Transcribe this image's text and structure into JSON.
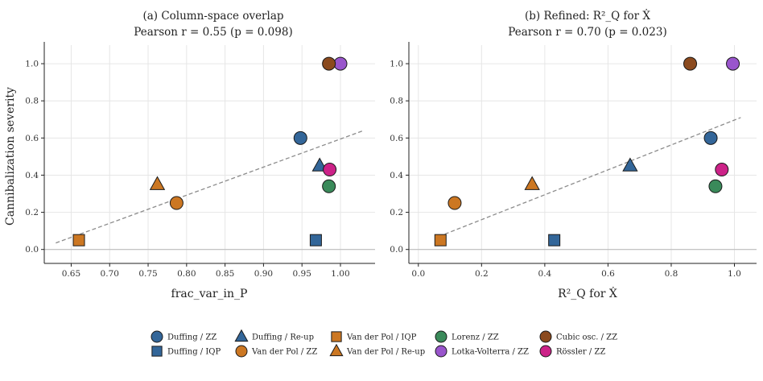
{
  "chart_data": [
    {
      "type": "scatter",
      "title_line1": "(a) Column-space overlap",
      "title_line2": "Pearson r = 0.55 (p = 0.098)",
      "xlabel": "frac_var_in_P",
      "ylabel": "Cannibalization severity",
      "xlim": [
        0.615,
        1.045
      ],
      "ylim": [
        -0.075,
        1.1
      ],
      "xticks": [
        0.65,
        0.7,
        0.75,
        0.8,
        0.85,
        0.9,
        0.95,
        1.0
      ],
      "xtick_labels": [
        "0.65",
        "0.70",
        "0.75",
        "0.80",
        "0.85",
        "0.90",
        "0.95",
        "1.00"
      ],
      "yticks": [
        0.0,
        0.2,
        0.4,
        0.6,
        0.8,
        1.0
      ],
      "ytick_labels": [
        "0.0",
        "0.2",
        "0.4",
        "0.6",
        "0.8",
        "1.0"
      ],
      "grid": true,
      "fit_line": {
        "x": [
          0.63,
          1.03
        ],
        "y": [
          0.035,
          0.64
        ]
      },
      "points": [
        {
          "series": "Duffing / ZZ",
          "x": 0.948,
          "y": 0.6
        },
        {
          "series": "Duffing / IQP",
          "x": 0.968,
          "y": 0.05
        },
        {
          "series": "Duffing / Re-up",
          "x": 0.973,
          "y": 0.45
        },
        {
          "series": "Van der Pol / IQP",
          "x": 0.66,
          "y": 0.05
        },
        {
          "series": "Van der Pol / ZZ",
          "x": 0.787,
          "y": 0.25
        },
        {
          "series": "Van der Pol / Re-up",
          "x": 0.762,
          "y": 0.35
        },
        {
          "series": "Lorenz / ZZ",
          "x": 0.985,
          "y": 0.34
        },
        {
          "series": "Lotka-Volterra / ZZ",
          "x": 1.0,
          "y": 1.0
        },
        {
          "series": "Cubic osc. / ZZ",
          "x": 0.985,
          "y": 1.0
        },
        {
          "series": "Rössler / ZZ",
          "x": 0.986,
          "y": 0.43
        }
      ]
    },
    {
      "type": "scatter",
      "title_line1": "(b) Refined: R²_Q for Ẋ",
      "title_line2": "Pearson r = 0.70 (p = 0.023)",
      "xlabel": "R²_Q for Ẋ",
      "ylabel": "",
      "xlim": [
        -0.03,
        1.07
      ],
      "ylim": [
        -0.075,
        1.1
      ],
      "xticks": [
        0.0,
        0.2,
        0.4,
        0.6,
        0.8,
        1.0
      ],
      "xtick_labels": [
        "0.0",
        "0.2",
        "0.4",
        "0.6",
        "0.8",
        "1.0"
      ],
      "yticks": [
        0.0,
        0.2,
        0.4,
        0.6,
        0.8,
        1.0
      ],
      "ytick_labels": [
        "0.0",
        "0.2",
        "0.4",
        "0.6",
        "0.8",
        "1.0"
      ],
      "grid": true,
      "fit_line": {
        "x": [
          0.065,
          1.02
        ],
        "y": [
          0.07,
          0.71
        ]
      },
      "points": [
        {
          "series": "Duffing / ZZ",
          "x": 0.925,
          "y": 0.6
        },
        {
          "series": "Duffing / IQP",
          "x": 0.43,
          "y": 0.05
        },
        {
          "series": "Duffing / Re-up",
          "x": 0.67,
          "y": 0.45
        },
        {
          "series": "Van der Pol / IQP",
          "x": 0.07,
          "y": 0.05
        },
        {
          "series": "Van der Pol / ZZ",
          "x": 0.115,
          "y": 0.25
        },
        {
          "series": "Van der Pol / Re-up",
          "x": 0.36,
          "y": 0.35
        },
        {
          "series": "Lorenz / ZZ",
          "x": 0.94,
          "y": 0.34
        },
        {
          "series": "Lotka-Volterra / ZZ",
          "x": 0.995,
          "y": 1.0
        },
        {
          "series": "Cubic osc. / ZZ",
          "x": 0.86,
          "y": 1.0
        },
        {
          "series": "Rössler / ZZ",
          "x": 0.96,
          "y": 0.43
        }
      ]
    }
  ],
  "legend": {
    "placement": "bottom-center",
    "entries": [
      {
        "name": "Duffing / ZZ",
        "marker": "circle",
        "color": "#336699"
      },
      {
        "name": "Duffing / IQP",
        "marker": "square",
        "color": "#336699"
      },
      {
        "name": "Duffing / Re-up",
        "marker": "triangle",
        "color": "#336699"
      },
      {
        "name": "Van der Pol / ZZ",
        "marker": "circle",
        "color": "#CC7722"
      },
      {
        "name": "Van der Pol / IQP",
        "marker": "square",
        "color": "#CC7722"
      },
      {
        "name": "Van der Pol / Re-up",
        "marker": "triangle",
        "color": "#CC7722"
      },
      {
        "name": "Lorenz / ZZ",
        "marker": "circle",
        "color": "#3A8A5A"
      },
      {
        "name": "Lotka-Volterra / ZZ",
        "marker": "circle",
        "color": "#9955CC"
      },
      {
        "name": "Cubic osc. / ZZ",
        "marker": "circle",
        "color": "#8B4A1E"
      },
      {
        "name": "Rössler / ZZ",
        "marker": "circle",
        "color": "#CC2288"
      }
    ]
  }
}
